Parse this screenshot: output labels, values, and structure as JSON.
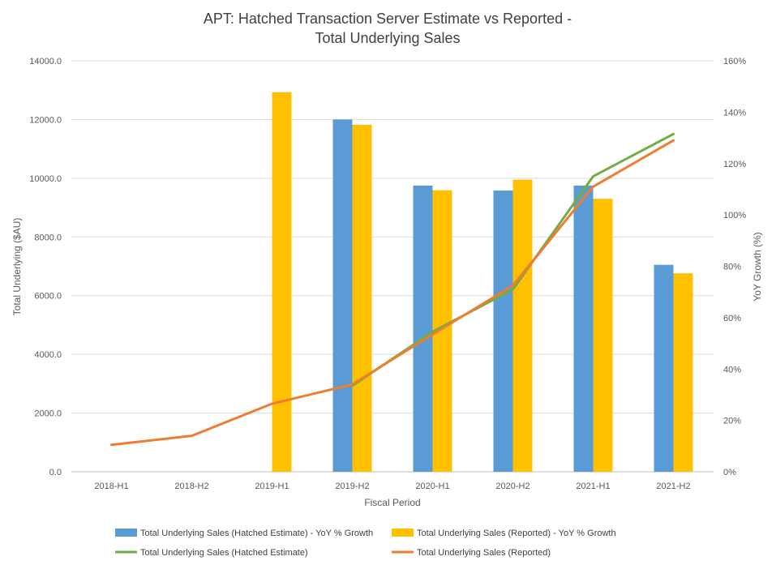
{
  "chart_data": {
    "type": "bar",
    "title_line1": "APT: Hatched Transaction Server Estimate vs Reported -",
    "title_line2": "Total Underlying Sales",
    "xlabel": "Fiscal Period",
    "ylabel": "Total Underlying ($AU)",
    "y2label": "YoY Growth (%)",
    "categories": [
      "2018-H1",
      "2018-H2",
      "2019-H1",
      "2019-H2",
      "2020-H1",
      "2020-H2",
      "2021-H1",
      "2021-H2"
    ],
    "ylim": [
      0,
      14000
    ],
    "yticks": [
      0,
      2000,
      4000,
      6000,
      8000,
      10000,
      12000,
      14000
    ],
    "ytick_labels": [
      "0.0",
      "2000.0",
      "4000.0",
      "6000.0",
      "8000.0",
      "10000.0",
      "12000.0",
      "14000.0"
    ],
    "y2lim": [
      0,
      160
    ],
    "y2ticks": [
      0,
      20,
      40,
      60,
      80,
      100,
      120,
      140,
      160
    ],
    "y2tick_labels": [
      "0%",
      "20%",
      "40%",
      "60%",
      "80%",
      "100%",
      "120%",
      "140%",
      "160%"
    ],
    "grid": true,
    "legend_position": "bottom",
    "bar_series": [
      {
        "name": "Total Underlying Sales (Hatched Estimate) - YoY % Growth",
        "color": "#5B9BD5",
        "values": [
          null,
          null,
          null,
          12000,
          9750,
          9580,
          9750,
          7050
        ]
      },
      {
        "name": "Total Underlying Sales (Reported) - YoY % Growth",
        "color": "#FFC000",
        "values": [
          null,
          null,
          12930,
          11820,
          9590,
          9950,
          9300,
          6760
        ]
      }
    ],
    "line_series": [
      {
        "name": "Total Underlying Sales (Hatched Estimate)",
        "color": "#70AD47",
        "axis": "right",
        "values": [
          null,
          null,
          null,
          33.5,
          54.5,
          71,
          115,
          131.5
        ]
      },
      {
        "name": "Total Underlying Sales (Reported)",
        "color": "#ED7D31",
        "axis": "right",
        "values": [
          10.5,
          14,
          26.5,
          34,
          53.5,
          72.5,
          111,
          129
        ]
      }
    ]
  }
}
